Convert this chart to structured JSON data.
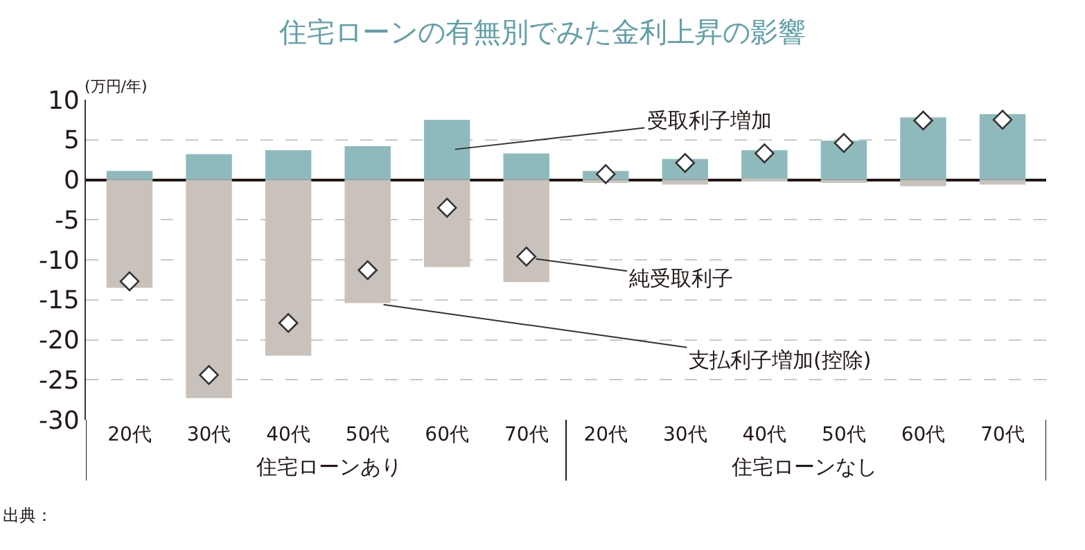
{
  "chart_data": {
    "type": "bar",
    "title": "住宅ローンの有無別でみた金利上昇の影響",
    "ylabel": "(万円/年)",
    "categories": [
      "20代",
      "30代",
      "40代",
      "50代",
      "60代",
      "70代",
      "20代",
      "30代",
      "40代",
      "50代",
      "60代",
      "70代"
    ],
    "stacked": true,
    "series": [
      {
        "name": "受取利子増加",
        "color": "#8fbabd",
        "values": [
          1.1,
          3.2,
          3.7,
          4.2,
          7.5,
          3.3,
          1.1,
          2.6,
          3.7,
          4.9,
          7.8,
          8.2
        ]
      },
      {
        "name": "支払利子増加(控除)",
        "color": "#c9c1bb",
        "values": [
          -13.5,
          -27.3,
          -22.0,
          -15.4,
          -10.9,
          -12.8,
          -0.4,
          -0.6,
          -0.2,
          -0.4,
          -0.8,
          -0.6
        ]
      },
      {
        "name": "純受取利子",
        "type": "scatter",
        "marker": "diamond",
        "color": "#ffffff",
        "values": [
          -12.7,
          -24.4,
          -17.9,
          -11.3,
          -3.5,
          -9.6,
          0.7,
          2.1,
          3.3,
          4.6,
          7.4,
          7.5
        ]
      }
    ],
    "ylim": [
      -30,
      10
    ],
    "yticks": [
      -30,
      -25,
      -20,
      -15,
      -10,
      -5,
      0,
      5,
      10
    ],
    "grid": "y",
    "legend": "right",
    "annotations": [
      "住宅ローンあり",
      "住宅ローンなし",
      "出典："
    ]
  }
}
